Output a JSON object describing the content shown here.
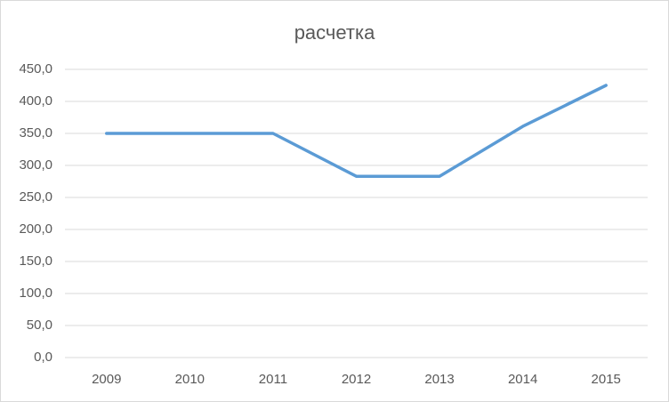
{
  "chart_data": {
    "type": "line",
    "title": "расчетка",
    "categories": [
      "2009",
      "2010",
      "2011",
      "2012",
      "2013",
      "2014",
      "2015"
    ],
    "series": [
      {
        "name": "расчетка",
        "color": "#5b9bd5",
        "values": [
          350,
          350,
          350,
          283,
          283,
          361,
          425
        ]
      }
    ],
    "ylim": [
      0,
      450
    ],
    "yticks": [
      {
        "value": 0,
        "label": "0,0"
      },
      {
        "value": 50,
        "label": "50,0"
      },
      {
        "value": 100,
        "label": "100,0"
      },
      {
        "value": 150,
        "label": "150,0"
      },
      {
        "value": 200,
        "label": "200,0"
      },
      {
        "value": 250,
        "label": "250,0"
      },
      {
        "value": 300,
        "label": "300,0"
      },
      {
        "value": 350,
        "label": "350,0"
      },
      {
        "value": 400,
        "label": "400,0"
      },
      {
        "value": 450,
        "label": "450,0"
      }
    ],
    "grid": true
  }
}
